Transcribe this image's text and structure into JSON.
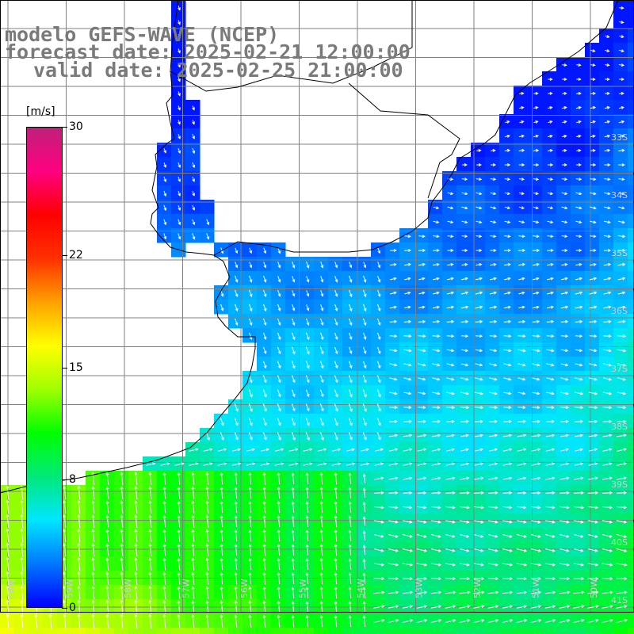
{
  "title": {
    "line1": "modelo GEFS-WAVE (NCEP)",
    "line2": "forecast date: 2025-02-21 12:00:00",
    "line3": "valid date: 2025-02-25 21:00:00"
  },
  "colorbar": {
    "unit": "[m/s]",
    "ticks": [
      {
        "label": "30",
        "value": 30
      },
      {
        "label": "22",
        "value": 22
      },
      {
        "label": "15",
        "value": 15
      },
      {
        "label": "8",
        "value": 8
      },
      {
        "label": "0",
        "value": 0
      }
    ],
    "range": [
      0,
      30
    ],
    "colors": [
      "#0000ff",
      "#0078ff",
      "#00e6ff",
      "#00e87a",
      "#00ff00",
      "#a0ff00",
      "#ffff00",
      "#ffa000",
      "#ff3000",
      "#ff0000",
      "#ff0080",
      "#c0207a"
    ]
  },
  "map": {
    "type": "wind-speed-field",
    "latitude_labels": [
      "33S",
      "34S",
      "35S",
      "36S",
      "37S",
      "38S",
      "39S",
      "40S",
      "41S"
    ],
    "longitude_labels": [
      "60W",
      "59W",
      "58W",
      "57W",
      "56W",
      "55W",
      "54W",
      "53W",
      "52W",
      "51W",
      "50W"
    ],
    "land_color": "#ffffff",
    "coast_color": "#000000",
    "grid_color": "#808080",
    "arrow_color": "#ffffff"
  }
}
